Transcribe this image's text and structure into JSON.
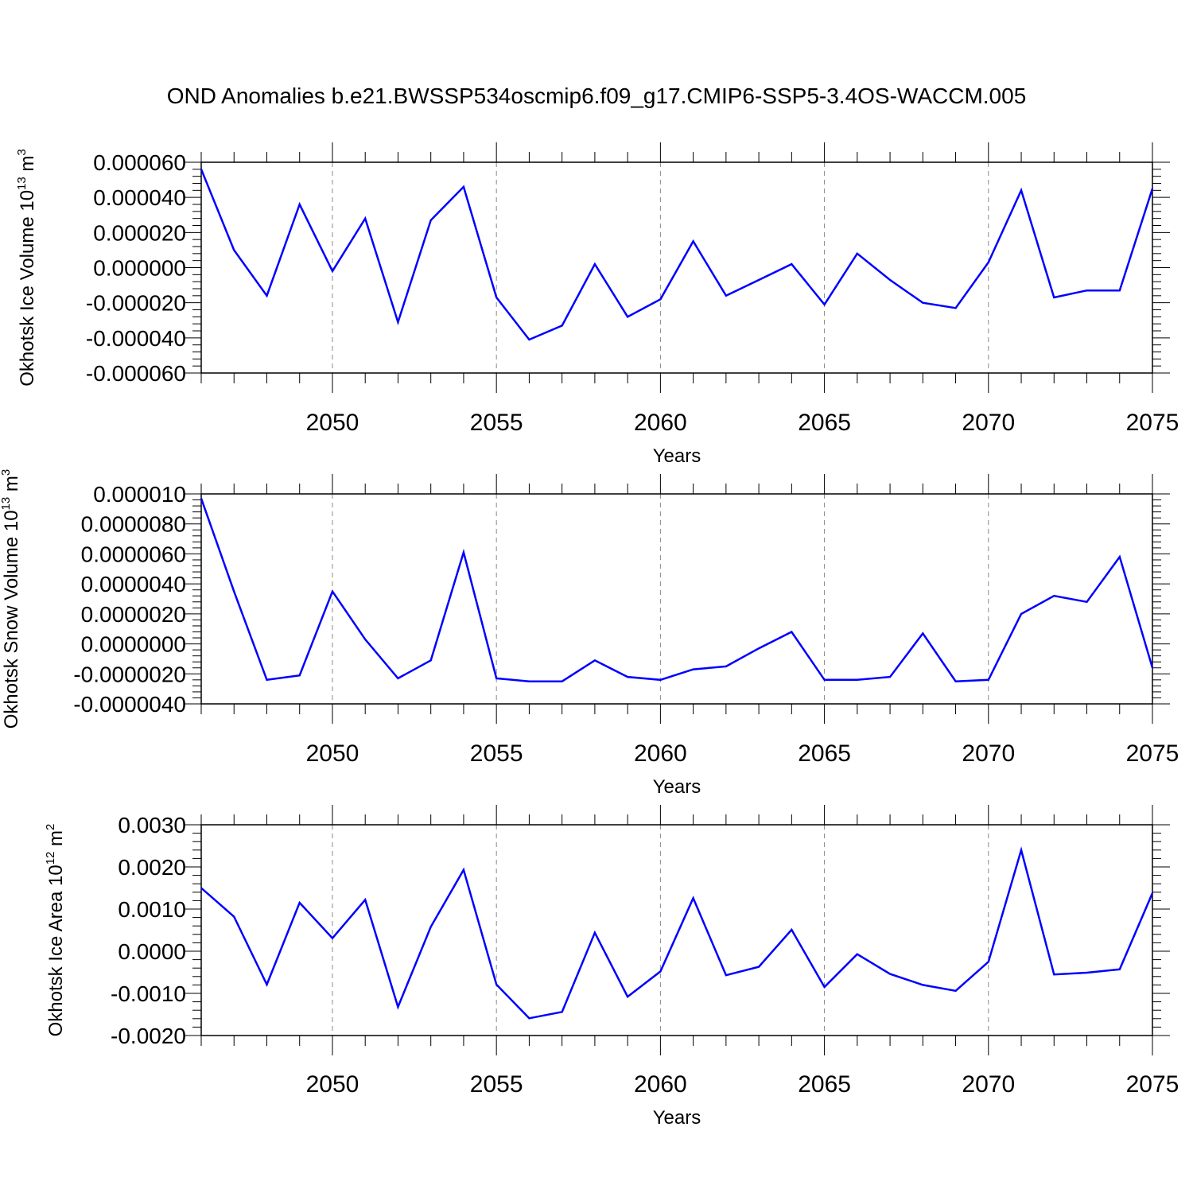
{
  "title": "OND Anomalies b.e21.BWSSP534oscmip6.f09_g17.CMIP6-SSP5-3.4OS-WACCM.005",
  "chart_data": [
    {
      "type": "line",
      "ylabel": {
        "text": "Okhotsk Ice Volume 10",
        "sup": "13",
        "unit": " m",
        "unit_sup": "3"
      },
      "xlabel": "Years",
      "xlim": [
        2046,
        2075
      ],
      "ylim": [
        -6e-05,
        6e-05
      ],
      "yticks": [
        {
          "value": 6e-05,
          "label": "0.000060"
        },
        {
          "value": 4e-05,
          "label": "0.000040"
        },
        {
          "value": 2e-05,
          "label": "0.000020"
        },
        {
          "value": 0.0,
          "label": "0.000000"
        },
        {
          "value": -2e-05,
          "label": "-0.000020"
        },
        {
          "value": -4e-05,
          "label": "-0.000040"
        },
        {
          "value": -6e-05,
          "label": "-0.000060"
        }
      ],
      "xticks": [
        {
          "value": 2050,
          "label": "2050"
        },
        {
          "value": 2055,
          "label": "2055"
        },
        {
          "value": 2060,
          "label": "2060"
        },
        {
          "value": 2065,
          "label": "2065"
        },
        {
          "value": 2070,
          "label": "2070"
        },
        {
          "value": 2075,
          "label": "2075"
        }
      ],
      "gridlines_x": [
        2050,
        2055,
        2060,
        2065,
        2070
      ],
      "series": [
        {
          "name": "Okhotsk Ice Volume",
          "color": "#0000ff",
          "x": [
            2046,
            2047,
            2048,
            2049,
            2050,
            2051,
            2052,
            2053,
            2054,
            2055,
            2056,
            2057,
            2058,
            2059,
            2060,
            2061,
            2062,
            2063,
            2064,
            2065,
            2066,
            2067,
            2068,
            2069,
            2070,
            2071,
            2072,
            2073,
            2074,
            2075
          ],
          "values": [
            5.6e-05,
            1e-05,
            -1.6e-05,
            3.6e-05,
            -2e-06,
            2.8e-05,
            -3.1e-05,
            2.7e-05,
            4.6e-05,
            -1.7e-05,
            -4.1e-05,
            -3.3e-05,
            2e-06,
            -2.8e-05,
            -1.8e-05,
            1.5e-05,
            -1.6e-05,
            -7e-06,
            2e-06,
            -2.1e-05,
            8e-06,
            -7e-06,
            -2e-05,
            -2.3e-05,
            3e-06,
            4.4e-05,
            -1.7e-05,
            -1.3e-05,
            -1.3e-05,
            4.5e-05
          ]
        }
      ]
    },
    {
      "type": "line",
      "ylabel": {
        "text": "Okhotsk Snow Volume 10",
        "sup": "13",
        "unit": " m",
        "unit_sup": "3"
      },
      "xlabel": "Years",
      "xlim": [
        2046,
        2075
      ],
      "ylim": [
        -4e-06,
        1e-05
      ],
      "yticks": [
        {
          "value": 1e-05,
          "label": "0.000010"
        },
        {
          "value": 8e-06,
          "label": "0.0000080"
        },
        {
          "value": 6e-06,
          "label": "0.0000060"
        },
        {
          "value": 4e-06,
          "label": "0.0000040"
        },
        {
          "value": 2e-06,
          "label": "0.0000020"
        },
        {
          "value": 0.0,
          "label": "0.0000000"
        },
        {
          "value": -2e-06,
          "label": "-0.0000020"
        },
        {
          "value": -4e-06,
          "label": "-0.0000040"
        }
      ],
      "xticks": [
        {
          "value": 2050,
          "label": "2050"
        },
        {
          "value": 2055,
          "label": "2055"
        },
        {
          "value": 2060,
          "label": "2060"
        },
        {
          "value": 2065,
          "label": "2065"
        },
        {
          "value": 2070,
          "label": "2070"
        },
        {
          "value": 2075,
          "label": "2075"
        }
      ],
      "gridlines_x": [
        2050,
        2055,
        2060,
        2065,
        2070
      ],
      "series": [
        {
          "name": "Okhotsk Snow Volume",
          "color": "#0000ff",
          "x": [
            2046,
            2047,
            2048,
            2049,
            2050,
            2051,
            2052,
            2053,
            2054,
            2055,
            2056,
            2057,
            2058,
            2059,
            2060,
            2061,
            2062,
            2063,
            2064,
            2065,
            2066,
            2067,
            2068,
            2069,
            2070,
            2071,
            2072,
            2073,
            2074,
            2075
          ],
          "values": [
            9.7e-06,
            3.5e-06,
            -2.4e-06,
            -2.1e-06,
            3.5e-06,
            3e-07,
            -2.3e-06,
            -1.1e-06,
            6.1e-06,
            -2.3e-06,
            -2.5e-06,
            -2.5e-06,
            -1.1e-06,
            -2.2e-06,
            -2.4e-06,
            -1.7e-06,
            -1.5e-06,
            -3e-07,
            8e-07,
            -2.4e-06,
            -2.4e-06,
            -2.2e-06,
            7e-07,
            -2.5e-06,
            -2.4e-06,
            2e-06,
            3.2e-06,
            2.8e-06,
            5.8e-06,
            -1.6e-06
          ]
        }
      ]
    },
    {
      "type": "line",
      "ylabel": {
        "text": "Okhotsk Ice Area 10",
        "sup": "12",
        "unit": " m",
        "unit_sup": "2"
      },
      "xlabel": "Years",
      "xlim": [
        2046,
        2075
      ],
      "ylim": [
        -0.002,
        0.003
      ],
      "yticks": [
        {
          "value": 0.003,
          "label": "0.0030"
        },
        {
          "value": 0.002,
          "label": "0.0020"
        },
        {
          "value": 0.001,
          "label": "0.0010"
        },
        {
          "value": 0.0,
          "label": "0.0000"
        },
        {
          "value": -0.001,
          "label": "-0.0010"
        },
        {
          "value": -0.002,
          "label": "-0.0020"
        }
      ],
      "xticks": [
        {
          "value": 2050,
          "label": "2050"
        },
        {
          "value": 2055,
          "label": "2055"
        },
        {
          "value": 2060,
          "label": "2060"
        },
        {
          "value": 2065,
          "label": "2065"
        },
        {
          "value": 2070,
          "label": "2070"
        },
        {
          "value": 2075,
          "label": "2075"
        }
      ],
      "gridlines_x": [
        2050,
        2055,
        2060,
        2065,
        2070
      ],
      "series": [
        {
          "name": "Okhotsk Ice Area",
          "color": "#0000ff",
          "x": [
            2046,
            2047,
            2048,
            2049,
            2050,
            2051,
            2052,
            2053,
            2054,
            2055,
            2056,
            2057,
            2058,
            2059,
            2060,
            2061,
            2062,
            2063,
            2064,
            2065,
            2066,
            2067,
            2068,
            2069,
            2070,
            2071,
            2072,
            2073,
            2074,
            2075
          ],
          "values": [
            0.0015,
            0.00082,
            -0.00079,
            0.00115,
            0.00031,
            0.00122,
            -0.00132,
            0.00058,
            0.00193,
            -0.00079,
            -0.00159,
            -0.00144,
            0.00044,
            -0.00108,
            -0.00048,
            0.00126,
            -0.00057,
            -0.00037,
            0.00051,
            -0.00085,
            -7e-05,
            -0.00054,
            -0.0008,
            -0.00094,
            -0.00025,
            0.0024,
            -0.00055,
            -0.00051,
            -0.00043,
            0.00138
          ]
        }
      ]
    }
  ]
}
